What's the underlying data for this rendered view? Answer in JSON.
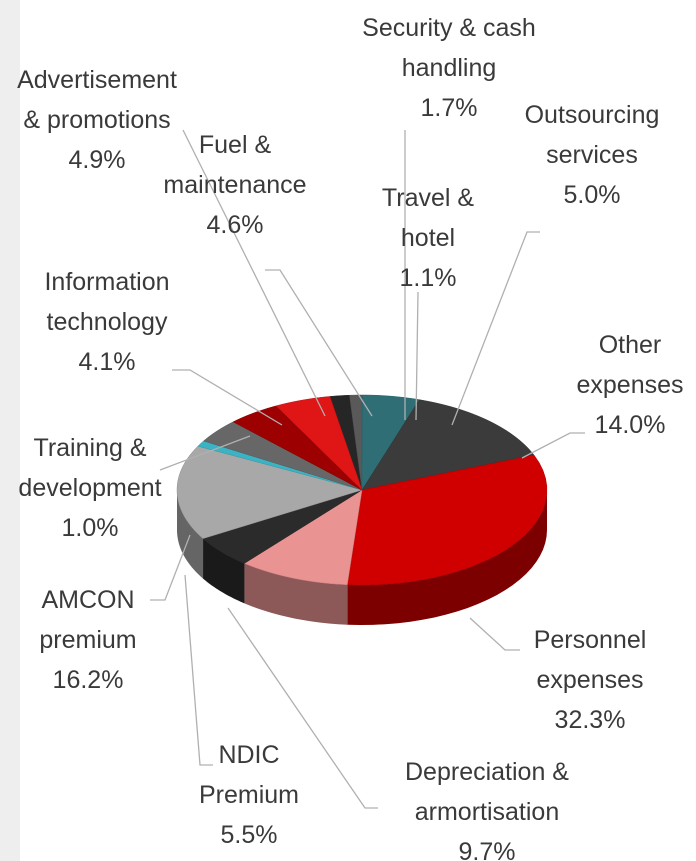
{
  "chart_data": {
    "type": "pie",
    "categories": [
      "Security & cash\nhandling",
      "Travel &\nhotel",
      "Outsourcing\nservices",
      "Other\nexpenses",
      "Personnel\nexpenses",
      "Depreciation &\narmortisation",
      "NDIC\nPremium",
      "AMCON\npremium",
      "Training &\ndevelopment",
      "Information\ntechnology",
      "Fuel &\nmaintenance",
      "Advertisement\n& promotions"
    ],
    "values": [
      1.7,
      1.1,
      5.0,
      14.0,
      32.3,
      9.7,
      5.5,
      16.2,
      1.0,
      4.1,
      4.6,
      4.9
    ],
    "value_labels": [
      "1.7%",
      "1.1%",
      "5.0%",
      "14.0%",
      "32.3%",
      "9.7%",
      "5.5%",
      "16.2%",
      "1.0%",
      "4.1%",
      "4.6%",
      "4.9%"
    ],
    "colors": [
      "#262626",
      "#595959",
      "#2f6e75",
      "#3b3b3b",
      "#d00000",
      "#e99393",
      "#2b2b2b",
      "#a8a8a8",
      "#3cb3c4",
      "#676767",
      "#9c0000",
      "#e01515"
    ]
  }
}
